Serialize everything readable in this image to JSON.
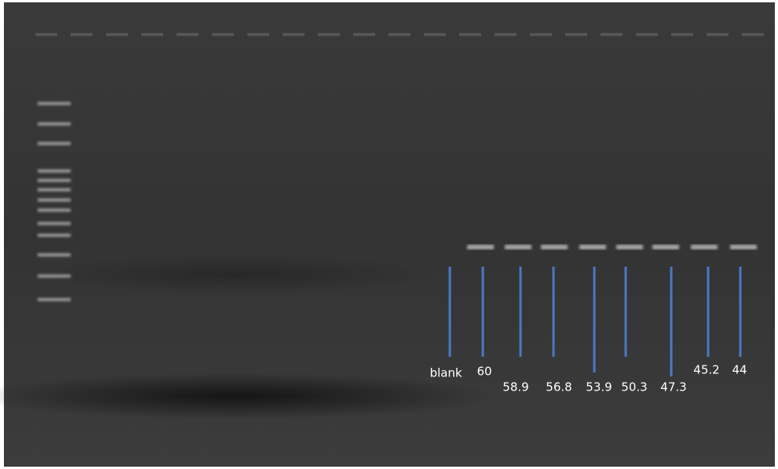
{
  "lanes": [
    {
      "label": "blank"
    },
    {
      "label": "60"
    },
    {
      "label": "58.9"
    },
    {
      "label": "56.8"
    },
    {
      "label": "53.9"
    },
    {
      "label": "50.3"
    },
    {
      "label": "47.3"
    },
    {
      "label": "45.2"
    },
    {
      "label": "44"
    }
  ]
}
